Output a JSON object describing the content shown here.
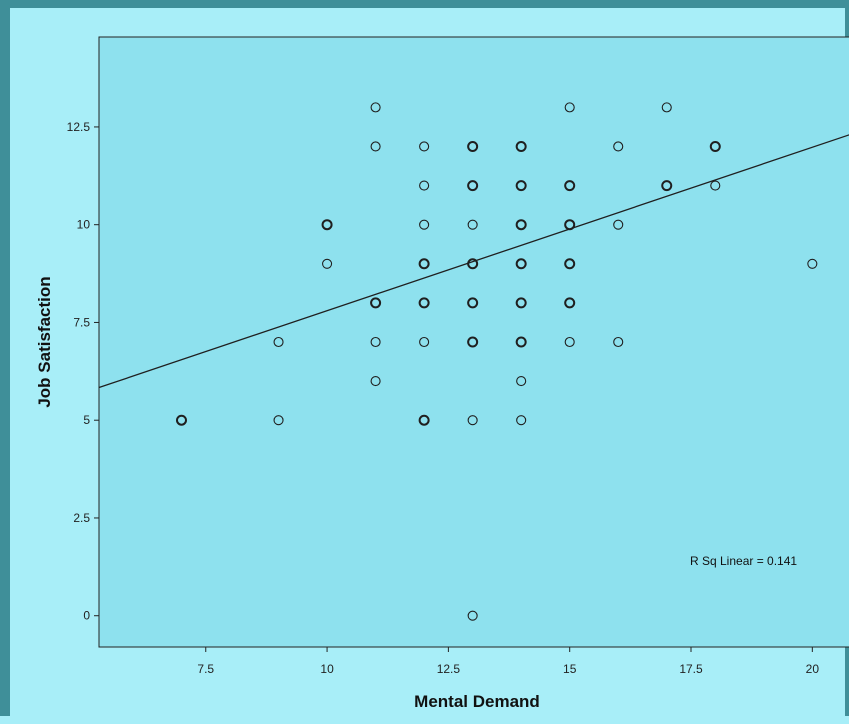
{
  "chart_data": {
    "type": "scatter",
    "title": "",
    "xlabel": "Mental Demand",
    "ylabel": "Job Satisfaction",
    "xlim": [
      5.3,
      20.9
    ],
    "ylim": [
      -0.8,
      14.8
    ],
    "xticks": [
      7.5,
      10,
      12.5,
      15,
      17.5,
      20
    ],
    "xtick_labels": [
      "7.5",
      "10",
      "12.5",
      "15",
      "17.5",
      "20"
    ],
    "yticks": [
      0,
      2.5,
      5,
      7.5,
      10,
      12.5
    ],
    "ytick_labels": [
      "0",
      "2.5",
      "5",
      "7.5",
      "10",
      "12.5"
    ],
    "grid": false,
    "legend": null,
    "annotation": "R Sq Linear = 0.141",
    "fit_line": {
      "slope": 0.418,
      "intercept": 3.62,
      "x_start": 5.3,
      "x_end": 20.9
    },
    "points": [
      {
        "x": 7,
        "y": 5,
        "multi": true
      },
      {
        "x": 9,
        "y": 7,
        "multi": false
      },
      {
        "x": 9,
        "y": 5,
        "multi": false
      },
      {
        "x": 10,
        "y": 10,
        "multi": true
      },
      {
        "x": 10,
        "y": 9,
        "multi": false
      },
      {
        "x": 11,
        "y": 13,
        "multi": false
      },
      {
        "x": 11,
        "y": 12,
        "multi": false
      },
      {
        "x": 11,
        "y": 8,
        "multi": true
      },
      {
        "x": 11,
        "y": 7,
        "multi": false
      },
      {
        "x": 11,
        "y": 6,
        "multi": false
      },
      {
        "x": 12,
        "y": 12,
        "multi": false
      },
      {
        "x": 12,
        "y": 11,
        "multi": false
      },
      {
        "x": 12,
        "y": 10,
        "multi": false
      },
      {
        "x": 12,
        "y": 9,
        "multi": true
      },
      {
        "x": 12,
        "y": 8,
        "multi": true
      },
      {
        "x": 12,
        "y": 7,
        "multi": false
      },
      {
        "x": 12,
        "y": 5,
        "multi": true
      },
      {
        "x": 13,
        "y": 12,
        "multi": true
      },
      {
        "x": 13,
        "y": 11,
        "multi": true
      },
      {
        "x": 13,
        "y": 10,
        "multi": false
      },
      {
        "x": 13,
        "y": 9,
        "multi": true
      },
      {
        "x": 13,
        "y": 8,
        "multi": true
      },
      {
        "x": 13,
        "y": 7,
        "multi": true
      },
      {
        "x": 13,
        "y": 5,
        "multi": false
      },
      {
        "x": 13,
        "y": 0,
        "multi": false
      },
      {
        "x": 14,
        "y": 12,
        "multi": true
      },
      {
        "x": 14,
        "y": 11,
        "multi": true
      },
      {
        "x": 14,
        "y": 10,
        "multi": true
      },
      {
        "x": 14,
        "y": 9,
        "multi": true
      },
      {
        "x": 14,
        "y": 8,
        "multi": true
      },
      {
        "x": 14,
        "y": 7,
        "multi": true
      },
      {
        "x": 14,
        "y": 6,
        "multi": false
      },
      {
        "x": 14,
        "y": 5,
        "multi": false
      },
      {
        "x": 15,
        "y": 13,
        "multi": false
      },
      {
        "x": 15,
        "y": 11,
        "multi": true
      },
      {
        "x": 15,
        "y": 10,
        "multi": true
      },
      {
        "x": 15,
        "y": 9,
        "multi": true
      },
      {
        "x": 15,
        "y": 8,
        "multi": true
      },
      {
        "x": 15,
        "y": 7,
        "multi": false
      },
      {
        "x": 16,
        "y": 12,
        "multi": false
      },
      {
        "x": 16,
        "y": 10,
        "multi": false
      },
      {
        "x": 16,
        "y": 7,
        "multi": false
      },
      {
        "x": 17,
        "y": 13,
        "multi": false
      },
      {
        "x": 17,
        "y": 11,
        "multi": true
      },
      {
        "x": 18,
        "y": 12,
        "multi": true
      },
      {
        "x": 18,
        "y": 11,
        "multi": false
      },
      {
        "x": 20,
        "y": 9,
        "multi": false
      }
    ]
  },
  "colors": {
    "frame": "#3f8f99",
    "outer_bg": "#a8eef8",
    "plot_bg": "#8ee1ee",
    "marker": "#1f1f1f",
    "fit_line": "#1f1f1f"
  }
}
